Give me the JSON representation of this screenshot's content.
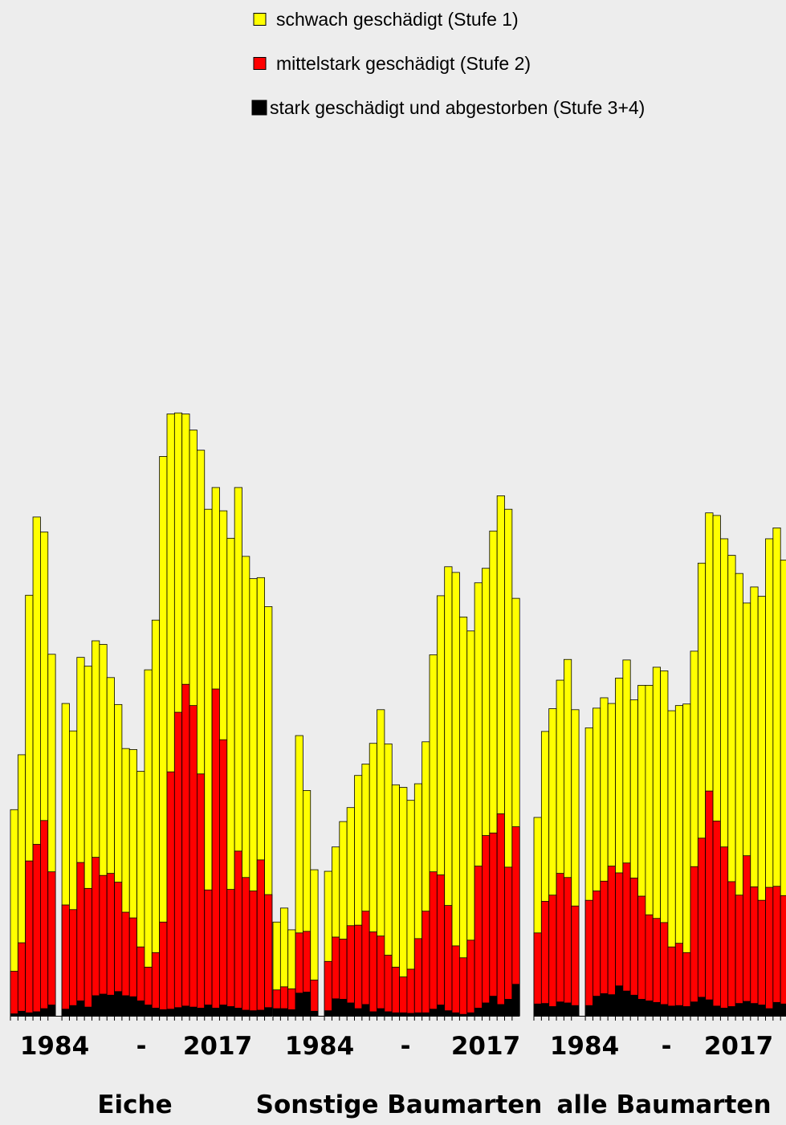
{
  "chart_data": {
    "type": "bar",
    "stacked": true,
    "title": "",
    "xlabel": "",
    "ylabel": "",
    "ylim": [
      0,
      100
    ],
    "grid": false,
    "legend_placement": "top-right",
    "colors": {
      "stufe1": "#ffff00",
      "stufe2": "#ff0000",
      "stufe34": "#000000",
      "background": "#ededed"
    },
    "legend": [
      {
        "label": "schwach geschädigt (Stufe 1)",
        "color": "#ffff00"
      },
      {
        "label": "mittelstark geschädigt (Stufe 2)",
        "color": "#ff0000"
      },
      {
        "label": "stark geschädigt und abgestorben (Stufe 3+4)",
        "color": "#000000"
      }
    ],
    "groups": [
      {
        "name": "Eiche",
        "tick_labels": [
          "1984",
          "-",
          "2017"
        ],
        "segments": [
          {
            "stufe34": [
              0.4,
              0.9,
              0.6,
              0.8,
              1.4,
              2.1
            ],
            "stufe2": [
              8.2,
              13.2,
              29.3,
              32.3,
              36.3,
              25.7
            ],
            "total": [
              39.8,
              50.4,
              81.2,
              96.3,
              93.4,
              69.8
            ]
          },
          {
            "stufe34": [
              1.3,
              2.0,
              2.9,
              1.7,
              3.9,
              4.2,
              4.0,
              4.7,
              3.9,
              3.7,
              2.9,
              2.1,
              1.5,
              1.2,
              1.3,
              1.6,
              1.9,
              1.7,
              1.5,
              2.1,
              1.5,
              2.1,
              1.8,
              1.5,
              1.1,
              1.0,
              1.1,
              1.6
            ],
            "stufe2": [
              20.1,
              18.5,
              26.7,
              22.9,
              26.7,
              22.9,
              23.5,
              21.1,
              16.1,
              15.2,
              10.4,
              7.3,
              10.7,
              16.9,
              45.8,
              57.0,
              62.1,
              58.2,
              45.2,
              22.2,
              61.6,
              51.2,
              22.6,
              30.3,
              25.6,
              23.1,
              29.0,
              21.8
            ],
            "total": [
              60.3,
              55.0,
              69.2,
              67.5,
              72.4,
              71.7,
              65.3,
              60.1,
              51.6,
              51.4,
              47.2,
              66.8,
              76.4,
              108.0,
              116.2,
              116.4,
              116.2,
              113.1,
              109.2,
              97.8,
              102.0,
              97.5,
              92.2,
              102.0,
              88.7,
              84.4,
              84.6,
              79.0
            ]
          }
        ]
      },
      {
        "name": "Sonstige Baumarten",
        "tick_labels": [
          "1984",
          "-",
          "2017"
        ],
        "segments": [
          {
            "stufe34": [
              1.4,
              1.4,
              1.2,
              4.4,
              4.6,
              0.9
            ],
            "stufe2": [
              3.6,
              4.2,
              4.0,
              11.6,
              11.7,
              6.0
            ],
            "total": [
              18.1,
              20.8,
              16.6,
              54.1,
              43.5,
              28.2
            ]
          },
          {
            "stufe34": [
              1.0,
              3.3,
              3.2,
              2.5,
              1.4,
              2.2,
              0.8,
              1.4,
              0.8,
              0.6,
              0.6,
              0.5,
              0.6,
              0.6,
              1.3,
              2.1,
              1.0,
              0.6,
              0.3,
              0.6,
              1.5,
              2.5,
              3.8,
              2.2,
              3.2,
              6.1
            ],
            "stufe2": [
              9.5,
              11.9,
              11.6,
              14.9,
              16.1,
              18.0,
              15.4,
              14.0,
              10.9,
              8.8,
              6.9,
              8.5,
              14.3,
              19.6,
              26.5,
              25.1,
              20.3,
              12.9,
              10.9,
              14.0,
              27.4,
              32.3,
              31.5,
              36.8,
              25.5,
              30.4
            ],
            "total": [
              27.9,
              32.6,
              37.5,
              40.2,
              46.4,
              48.6,
              52.6,
              59.1,
              52.5,
              44.6,
              44.1,
              41.6,
              44.8,
              52.9,
              69.7,
              81.1,
              86.7,
              85.6,
              77.0,
              74.3,
              83.6,
              86.4,
              93.6,
              100.4,
              97.8,
              80.6
            ]
          }
        ]
      },
      {
        "name": "alle Baumarten",
        "tick_labels": [
          "1984",
          "-",
          "2017"
        ],
        "segments": [
          {
            "stufe34": [
              2.3,
              2.4,
              1.8,
              2.7,
              2.5,
              2.0
            ],
            "stufe2": [
              13.7,
              19.7,
              21.5,
              24.8,
              24.2,
              19.2
            ],
            "total": [
              38.3,
              54.9,
              59.3,
              64.8,
              68.8,
              59.1
            ]
          },
          {
            "stufe34": [
              2.0,
              3.8,
              4.3,
              4.1,
              5.8,
              4.8,
              4.0,
              3.2,
              2.9,
              2.6,
              2.2,
              1.9,
              2.0,
              1.8,
              2.7,
              3.6,
              3.1,
              1.9,
              1.5,
              1.8,
              2.4,
              2.8,
              2.4,
              2.1,
              1.4,
              2.6,
              2.3
            ],
            "stufe2": [
              20.3,
              20.3,
              21.7,
              24.8,
              21.8,
              24.7,
              22.6,
              19.9,
              16.6,
              16.2,
              15.8,
              11.4,
              12.0,
              10.4,
              26.1,
              30.7,
              40.3,
              35.7,
              31.1,
              24.1,
              20.9,
              28.1,
              22.5,
              20.2,
              23.4,
              22.4,
              20.9
            ],
            "total": [
              55.6,
              59.4,
              61.4,
              60.3,
              65.2,
              68.7,
              61.0,
              63.8,
              63.8,
              67.3,
              66.6,
              58.9,
              59.9,
              60.2,
              70.4,
              87.4,
              97.1,
              96.6,
              92.1,
              88.9,
              85.4,
              79.7,
              82.8,
              81.0,
              92.1,
              94.2,
              88.0
            ]
          }
        ]
      }
    ]
  }
}
